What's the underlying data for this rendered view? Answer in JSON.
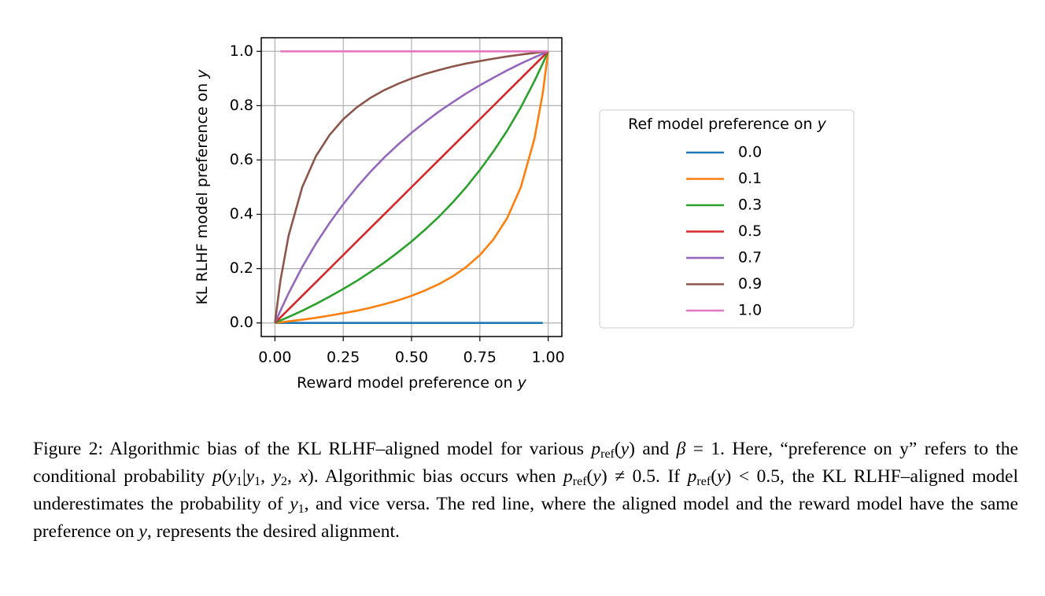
{
  "chart_data": {
    "type": "line",
    "xlabel": [
      "Reward model preference on ",
      "y"
    ],
    "ylabel": [
      "KL RLHF model preference on ",
      "y"
    ],
    "legend_title": [
      "Ref model preference on ",
      "y"
    ],
    "legend": "right",
    "grid": true,
    "xlim": [
      -0.05,
      1.05
    ],
    "ylim": [
      -0.05,
      1.05
    ],
    "xticks": [
      {
        "value": 0,
        "label": "0.00"
      },
      {
        "value": 0.25,
        "label": "0.25"
      },
      {
        "value": 0.5,
        "label": "0.50"
      },
      {
        "value": 0.75,
        "label": "0.75"
      },
      {
        "value": 1,
        "label": "1.00"
      }
    ],
    "yticks": [
      {
        "value": 0,
        "label": "0.0"
      },
      {
        "value": 0.2,
        "label": "0.2"
      },
      {
        "value": 0.4,
        "label": "0.4"
      },
      {
        "value": 0.6,
        "label": "0.6"
      },
      {
        "value": 0.8,
        "label": "0.8"
      },
      {
        "value": 1,
        "label": "1.0"
      }
    ],
    "x": [
      0,
      0.02,
      0.05,
      0.1,
      0.15,
      0.2,
      0.25,
      0.3,
      0.35,
      0.4,
      0.45,
      0.5,
      0.55,
      0.6,
      0.65,
      0.7,
      0.75,
      0.8,
      0.85,
      0.9,
      0.95,
      0.98,
      1
    ],
    "series": [
      {
        "name": "0.0",
        "color": "#1f77b4",
        "values": [
          0,
          0,
          0,
          0,
          0,
          0,
          0,
          0,
          0,
          0,
          0,
          0,
          0,
          0,
          0,
          0,
          0,
          0,
          0,
          0,
          0,
          0,
          null
        ]
      },
      {
        "name": "0.1",
        "color": "#ff7f0e",
        "values": [
          0,
          0.002,
          0.006,
          0.012,
          0.019,
          0.027,
          0.036,
          0.045,
          0.056,
          0.069,
          0.083,
          0.1,
          0.12,
          0.143,
          0.171,
          0.206,
          0.25,
          0.308,
          0.386,
          0.5,
          0.679,
          0.845,
          1
        ]
      },
      {
        "name": "0.3",
        "color": "#2ca02c",
        "values": [
          0,
          0.009,
          0.022,
          0.045,
          0.07,
          0.097,
          0.125,
          0.155,
          0.188,
          0.222,
          0.26,
          0.3,
          0.344,
          0.391,
          0.443,
          0.5,
          0.563,
          0.632,
          0.708,
          0.794,
          0.891,
          0.955,
          1
        ]
      },
      {
        "name": "0.5",
        "color": "#d62728",
        "values": [
          0,
          0.02,
          0.05,
          0.1,
          0.15,
          0.2,
          0.25,
          0.3,
          0.35,
          0.4,
          0.45,
          0.5,
          0.55,
          0.6,
          0.65,
          0.7,
          0.75,
          0.8,
          0.85,
          0.9,
          0.95,
          0.98,
          1
        ]
      },
      {
        "name": "0.7",
        "color": "#9467bd",
        "values": [
          0,
          0.045,
          0.109,
          0.206,
          0.292,
          0.368,
          0.437,
          0.5,
          0.557,
          0.609,
          0.656,
          0.7,
          0.74,
          0.778,
          0.812,
          0.845,
          0.875,
          0.903,
          0.93,
          0.955,
          0.978,
          0.991,
          1
        ]
      },
      {
        "name": "0.9",
        "color": "#8c564b",
        "values": [
          0,
          0.155,
          0.321,
          0.5,
          0.614,
          0.692,
          0.75,
          0.794,
          0.829,
          0.857,
          0.88,
          0.9,
          0.917,
          0.931,
          0.944,
          0.955,
          0.964,
          0.973,
          0.981,
          0.988,
          0.994,
          0.998,
          1
        ]
      },
      {
        "name": "1.0",
        "color": "#e377c2",
        "values": [
          null,
          1,
          1,
          1,
          1,
          1,
          1,
          1,
          1,
          1,
          1,
          1,
          1,
          1,
          1,
          1,
          1,
          1,
          1,
          1,
          1,
          1,
          1
        ]
      }
    ]
  },
  "caption": [
    "Figure 2: Algorithmic bias of the KL RLHF–aligned model for various ",
    "p",
    "ref",
    "(",
    "y",
    ")",
    " and ",
    "β",
    " = 1. Here, “preference on y” refers to the conditional probability ",
    "p",
    "(",
    "y",
    "1",
    "|",
    "y",
    "1",
    ", ",
    "y",
    "2",
    ", ",
    "x",
    "). Algorithmic bias occurs when ",
    "p",
    "ref",
    "(",
    "y",
    ") ≠ 0.5. If ",
    "p",
    "ref",
    "(",
    "y",
    ") < 0.5, the KL RLHF–aligned model underestimates the probability of ",
    "y",
    "1",
    ", and vice versa. The red line, where the aligned model and the reward model have the same preference on ",
    "y",
    ", represents the desired alignment."
  ]
}
